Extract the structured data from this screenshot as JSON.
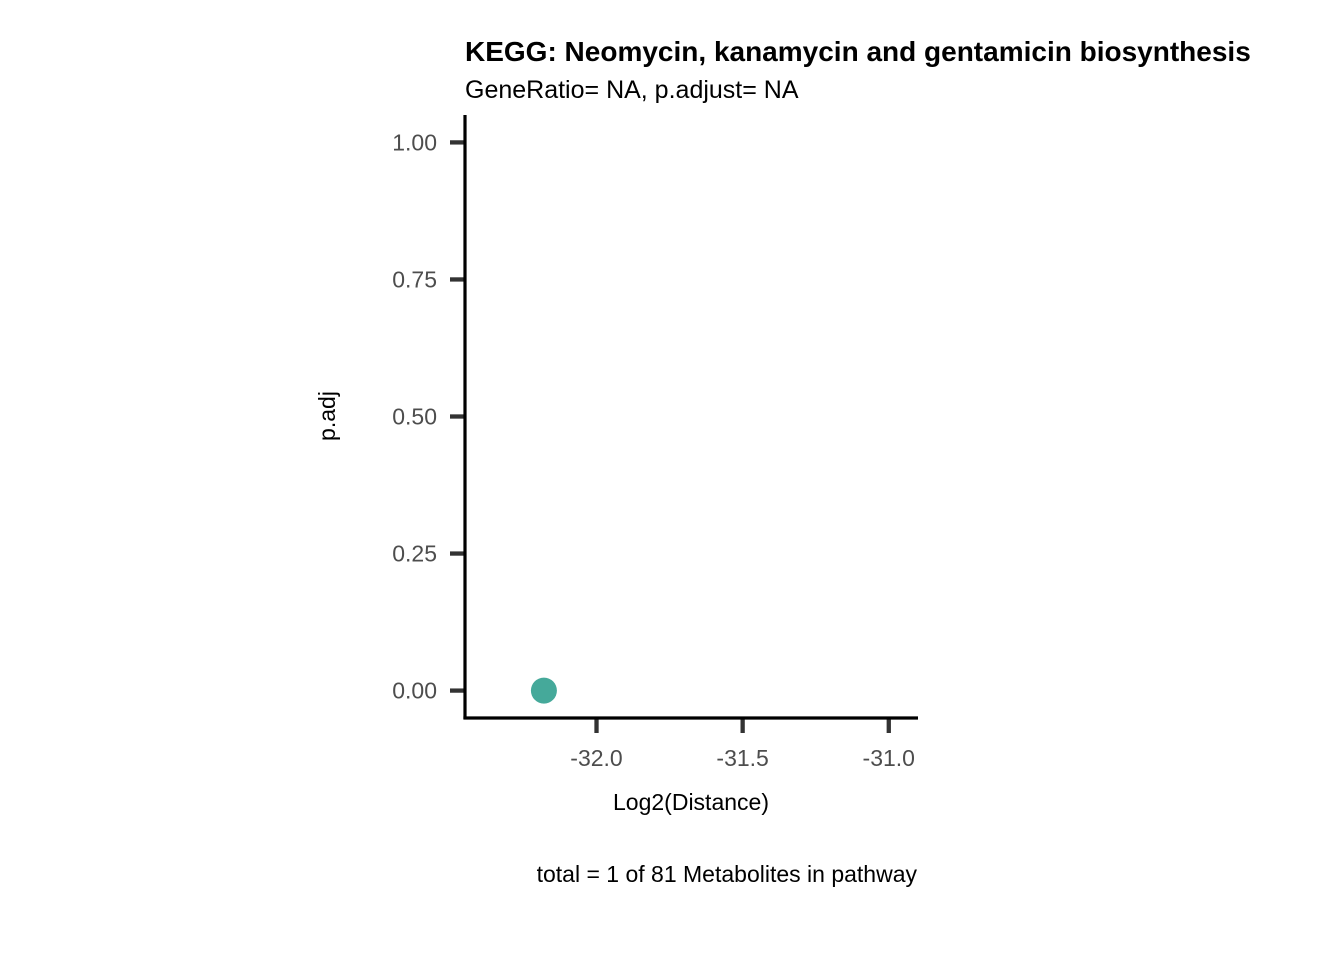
{
  "chart_data": {
    "type": "scatter",
    "title": "KEGG: Neomycin, kanamycin and gentamicin biosynthesis",
    "subtitle": "GeneRatio= NA, p.adjust= NA",
    "xlabel": "Log2(Distance)",
    "ylabel": "p.adj",
    "caption": "total = 1 of 81 Metabolites in pathway",
    "xlim": [
      -32.45,
      -30.9
    ],
    "ylim": [
      -0.05,
      1.05
    ],
    "x_ticks": [
      -32.0,
      -31.5,
      -31.0
    ],
    "x_tick_labels": [
      "-32.0",
      "-31.5",
      "-31.0"
    ],
    "y_ticks": [
      0,
      0.25,
      0.5,
      0.75,
      1.0
    ],
    "y_tick_labels": [
      "0.00",
      "0.25",
      "0.50",
      "0.75",
      "1.00"
    ],
    "grid": false,
    "series": [
      {
        "color": "#45a99a",
        "points": [
          {
            "x": -32.18,
            "y": 0.0
          }
        ]
      }
    ]
  }
}
